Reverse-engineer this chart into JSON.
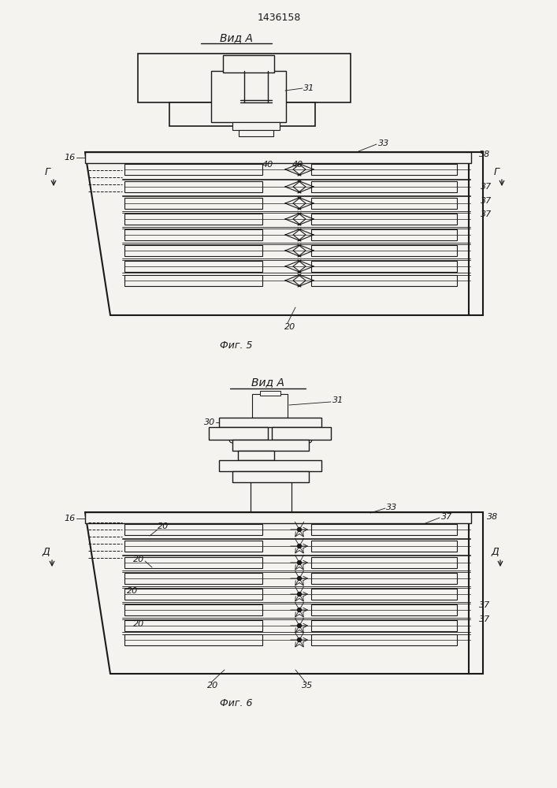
{
  "patent_number": "1436158",
  "bg_color": "#f5f3ef",
  "line_color": "#1a1a1a",
  "fig5_title": "Вид А",
  "fig5_caption": "Фиг. 5",
  "fig6_title": "Вид А",
  "fig6_caption": "Фиг. 6"
}
